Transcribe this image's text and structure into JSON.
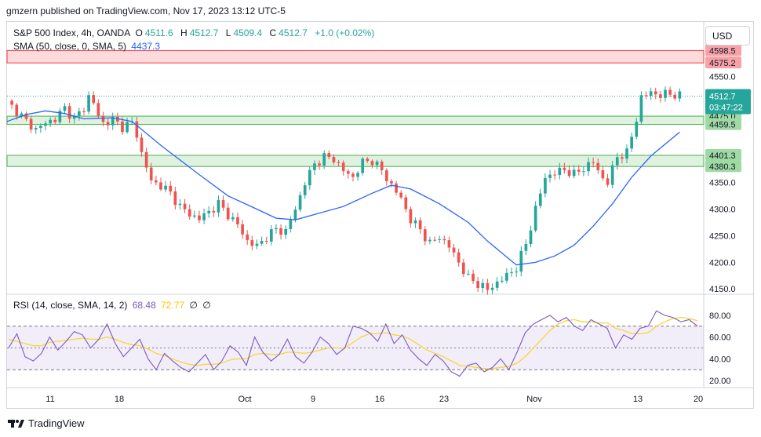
{
  "header": {
    "published": "gmzern published on TradingView.com, Nov 17, 2023 13:12 UTC-5"
  },
  "legend_main": {
    "symbol": "S&P 500 Index, 4h, OANDA",
    "o_label": "O",
    "o": "4511.6",
    "h_label": "H",
    "h": "4512.7",
    "l_label": "L",
    "l": "4509.4",
    "c_label": "C",
    "c": "4512.7",
    "chg": "+1.0 (+0.02%)"
  },
  "legend_sma": {
    "label": "SMA (50, close, 0, SMA, 5)",
    "value": "4437.3"
  },
  "legend_rsi": {
    "label": "RSI (14, close, SMA, 14, 2)",
    "v1": "68.48",
    "v2": "72.77",
    "v3": "∅",
    "v4": "∅"
  },
  "currency_button": "USD",
  "footer": {
    "brand": "TradingView"
  },
  "colors": {
    "up": "#26a69a",
    "down": "#ef5350",
    "sma": "#2962ff",
    "rsi": "#7e57c2",
    "rsi_ma": "#f7d63a"
  },
  "chart_data": {
    "type": "candlestick",
    "x_ticks": [
      "11",
      "18",
      "Oct",
      "9",
      "16",
      "23",
      "Nov",
      "13",
      "20"
    ],
    "y_ticks": [
      "4550.0",
      "4500.0",
      "4350.0",
      "4300.0",
      "4250.0",
      "4200.0",
      "4150.0"
    ],
    "ylim": [
      4140,
      4605
    ],
    "zones": [
      {
        "type": "resistance",
        "from": 4575.2,
        "to": 4598.5,
        "labels": [
          "4598.5",
          "4575.2"
        ]
      },
      {
        "type": "support",
        "from": 4459.5,
        "to": 4475.0,
        "labels": [
          "4475.0",
          "4459.5"
        ]
      },
      {
        "type": "support",
        "from": 4380.3,
        "to": 4401.3,
        "labels": [
          "4401.3",
          "4380.3"
        ]
      }
    ],
    "last_price": {
      "value": 4512.7,
      "label": "4512.7",
      "countdown": "03:47:22"
    },
    "price_path": [
      [
        0,
        4500
      ],
      [
        2,
        4485
      ],
      [
        4,
        4465
      ],
      [
        6,
        4450
      ],
      [
        8,
        4462
      ],
      [
        10,
        4470
      ],
      [
        12,
        4490
      ],
      [
        13,
        4480
      ],
      [
        14,
        4470
      ],
      [
        16,
        4490
      ],
      [
        17,
        4512
      ],
      [
        18,
        4500
      ],
      [
        19,
        4475
      ],
      [
        20,
        4462
      ],
      [
        22,
        4468
      ],
      [
        24,
        4455
      ],
      [
        26,
        4462
      ],
      [
        27,
        4440
      ],
      [
        28,
        4405
      ],
      [
        29,
        4380
      ],
      [
        30,
        4352
      ],
      [
        32,
        4345
      ],
      [
        34,
        4330
      ],
      [
        36,
        4305
      ],
      [
        38,
        4290
      ],
      [
        40,
        4282
      ],
      [
        42,
        4295
      ],
      [
        44,
        4310
      ],
      [
        46,
        4290
      ],
      [
        48,
        4270
      ],
      [
        50,
        4240
      ],
      [
        52,
        4230
      ],
      [
        54,
        4248
      ],
      [
        56,
        4262
      ],
      [
        58,
        4258
      ],
      [
        60,
        4300
      ],
      [
        62,
        4350
      ],
      [
        64,
        4385
      ],
      [
        66,
        4398
      ],
      [
        68,
        4395
      ],
      [
        70,
        4372
      ],
      [
        72,
        4360
      ],
      [
        74,
        4388
      ],
      [
        76,
        4392
      ],
      [
        78,
        4372
      ],
      [
        80,
        4345
      ],
      [
        82,
        4320
      ],
      [
        84,
        4280
      ],
      [
        86,
        4262
      ],
      [
        88,
        4235
      ],
      [
        90,
        4248
      ],
      [
        92,
        4230
      ],
      [
        94,
        4200
      ],
      [
        96,
        4170
      ],
      [
        98,
        4160
      ],
      [
        100,
        4148
      ],
      [
        102,
        4162
      ],
      [
        104,
        4175
      ],
      [
        106,
        4190
      ],
      [
        108,
        4235
      ],
      [
        110,
        4300
      ],
      [
        112,
        4360
      ],
      [
        114,
        4368
      ],
      [
        116,
        4375
      ],
      [
        118,
        4365
      ],
      [
        120,
        4378
      ],
      [
        122,
        4388
      ],
      [
        124,
        4358
      ],
      [
        125,
        4350
      ],
      [
        127,
        4400
      ],
      [
        129,
        4405
      ],
      [
        131,
        4470
      ],
      [
        132,
        4510
      ],
      [
        134,
        4520
      ],
      [
        136,
        4514
      ],
      [
        138,
        4518
      ],
      [
        140,
        4512.7
      ]
    ],
    "sma_path": [
      [
        0,
        4465
      ],
      [
        4,
        4478
      ],
      [
        8,
        4485
      ],
      [
        12,
        4480
      ],
      [
        16,
        4470
      ],
      [
        22,
        4472
      ],
      [
        26,
        4465
      ],
      [
        32,
        4420
      ],
      [
        40,
        4365
      ],
      [
        46,
        4325
      ],
      [
        52,
        4300
      ],
      [
        56,
        4283
      ],
      [
        60,
        4280
      ],
      [
        64,
        4290
      ],
      [
        70,
        4305
      ],
      [
        76,
        4330
      ],
      [
        80,
        4345
      ],
      [
        84,
        4338
      ],
      [
        90,
        4310
      ],
      [
        96,
        4275
      ],
      [
        100,
        4240
      ],
      [
        104,
        4210
      ],
      [
        106,
        4195
      ],
      [
        110,
        4200
      ],
      [
        114,
        4212
      ],
      [
        118,
        4232
      ],
      [
        122,
        4268
      ],
      [
        126,
        4310
      ],
      [
        130,
        4360
      ],
      [
        134,
        4400
      ],
      [
        138,
        4430
      ],
      [
        140,
        4445
      ]
    ],
    "rsi": {
      "ylim": [
        15,
        90
      ],
      "y_ticks": [
        "80.00",
        "60.00",
        "40.00",
        "20.00"
      ],
      "bands": [
        70,
        50,
        30
      ],
      "series": [
        50,
        63,
        42,
        38,
        45,
        60,
        48,
        56,
        65,
        62,
        50,
        58,
        72,
        54,
        42,
        50,
        58,
        40,
        30,
        45,
        38,
        32,
        28,
        36,
        44,
        30,
        38,
        52,
        46,
        34,
        60,
        46,
        38,
        44,
        58,
        42,
        36,
        46,
        60,
        54,
        44,
        50,
        70,
        68,
        64,
        56,
        72,
        54,
        62,
        48,
        40,
        34,
        44,
        38,
        28,
        24,
        34,
        36,
        28,
        32,
        40,
        30,
        46,
        64,
        72,
        76,
        80,
        74,
        78,
        70,
        66,
        76,
        72,
        68,
        50,
        62,
        58,
        68,
        70,
        84,
        80,
        78,
        74,
        76,
        70
      ],
      "ma": [
        58,
        56,
        54,
        52,
        52,
        55,
        56,
        57,
        58,
        59,
        58,
        58,
        60,
        58,
        55,
        53,
        52,
        49,
        45,
        43,
        40,
        37,
        35,
        34,
        35,
        35,
        36,
        39,
        40,
        40,
        44,
        45,
        44,
        44,
        46,
        46,
        45,
        46,
        48,
        50,
        50,
        50,
        55,
        60,
        63,
        63,
        64,
        62,
        61,
        58,
        53,
        48,
        45,
        42,
        38,
        34,
        33,
        32,
        31,
        31,
        32,
        33,
        36,
        42,
        50,
        58,
        66,
        72,
        75,
        76,
        74,
        74,
        73,
        73,
        68,
        66,
        63,
        63,
        64,
        70,
        74,
        77,
        78,
        77,
        75
      ]
    }
  }
}
